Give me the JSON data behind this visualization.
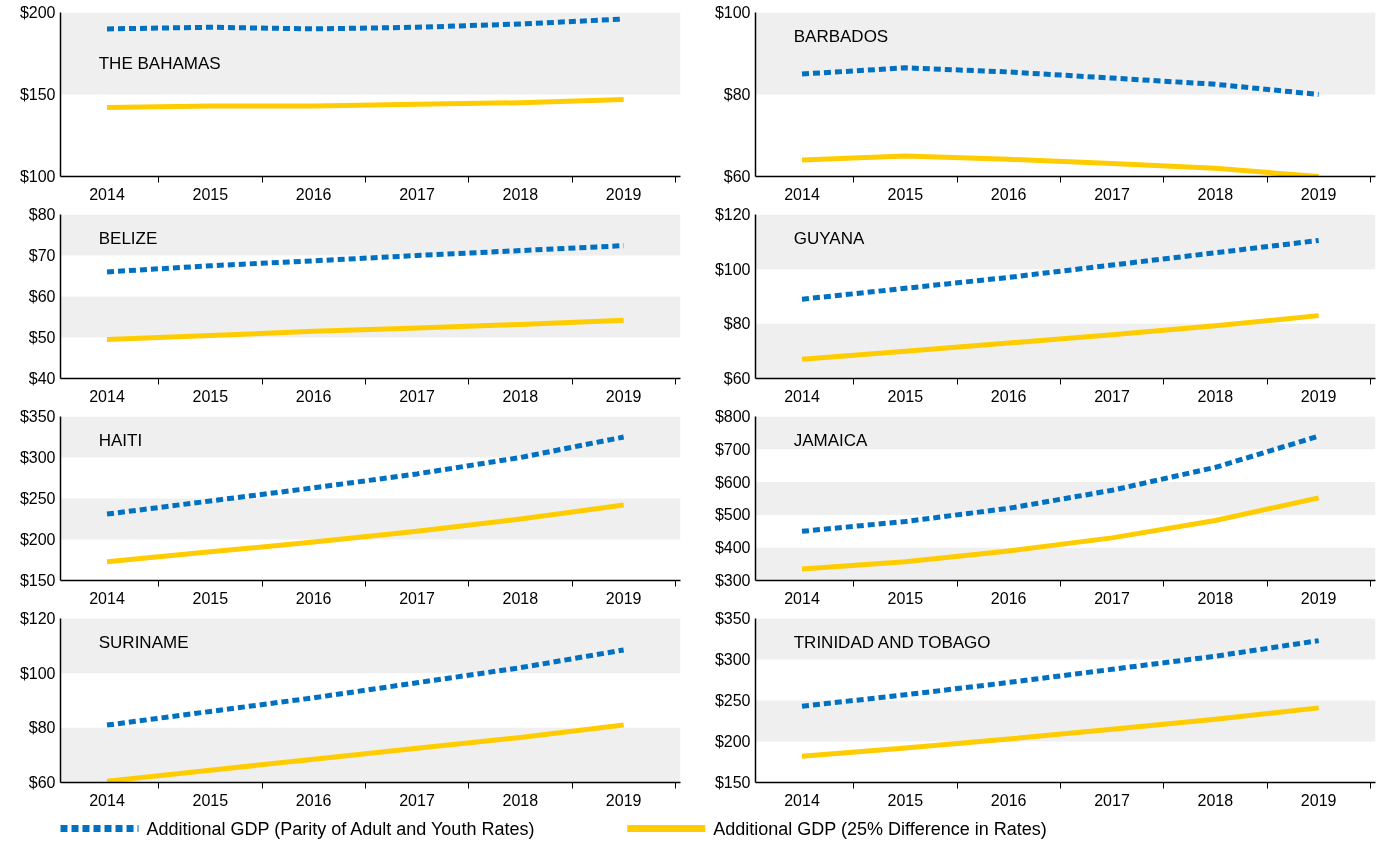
{
  "chart_data": [
    {
      "type": "line",
      "title": "THE BAHAMAS",
      "categories": [
        "2014",
        "2015",
        "2016",
        "2017",
        "2018",
        "2019"
      ],
      "ylim": [
        100,
        200
      ],
      "yticks": [
        {
          "value": 100,
          "label": "$100"
        },
        {
          "value": 150,
          "label": "$150"
        },
        {
          "value": 200,
          "label": "$200"
        }
      ],
      "bands": [
        {
          "axis": "y",
          "from": 150,
          "to": 200,
          "color": "#efefef"
        }
      ],
      "series": [
        {
          "color": "#0070c0",
          "line_style": "dashed",
          "values": [
            190,
            191,
            190,
            191,
            193,
            196
          ]
        },
        {
          "color": "#ffcc00",
          "line_style": "solid",
          "values": [
            142,
            143,
            143,
            144,
            145,
            147
          ]
        }
      ]
    },
    {
      "type": "line",
      "title": "BARBADOS",
      "categories": [
        "2014",
        "2015",
        "2016",
        "2017",
        "2018",
        "2019"
      ],
      "ylim": [
        60,
        100
      ],
      "yticks": [
        {
          "value": 60,
          "label": "$60"
        },
        {
          "value": 80,
          "label": "$80"
        },
        {
          "value": 100,
          "label": "$100"
        }
      ],
      "bands": [
        {
          "axis": "y",
          "from": 80,
          "to": 100,
          "color": "#efefef"
        }
      ],
      "series": [
        {
          "color": "#0070c0",
          "line_style": "dashed",
          "values": [
            85,
            86.5,
            85.5,
            84,
            82.5,
            80
          ]
        },
        {
          "color": "#ffcc00",
          "line_style": "solid",
          "values": [
            64,
            65,
            64.2,
            63.2,
            62,
            60
          ]
        }
      ]
    },
    {
      "type": "line",
      "title": "BELIZE",
      "categories": [
        "2014",
        "2015",
        "2016",
        "2017",
        "2018",
        "2019"
      ],
      "ylim": [
        40,
        80
      ],
      "yticks": [
        {
          "value": 40,
          "label": "$40"
        },
        {
          "value": 50,
          "label": "$50"
        },
        {
          "value": 60,
          "label": "$60"
        },
        {
          "value": 70,
          "label": "$70"
        },
        {
          "value": 80,
          "label": "$80"
        }
      ],
      "bands": [
        {
          "axis": "y",
          "from": 70,
          "to": 80,
          "color": "#efefef"
        },
        {
          "axis": "y",
          "from": 50,
          "to": 60,
          "color": "#efefef"
        }
      ],
      "series": [
        {
          "color": "#0070c0",
          "line_style": "dashed",
          "values": [
            66,
            67.5,
            68.7,
            70,
            71.2,
            72.4
          ]
        },
        {
          "color": "#ffcc00",
          "line_style": "solid",
          "values": [
            49.5,
            50.5,
            51.5,
            52.3,
            53.2,
            54.2
          ]
        }
      ]
    },
    {
      "type": "line",
      "title": "GUYANA",
      "categories": [
        "2014",
        "2015",
        "2016",
        "2017",
        "2018",
        "2019"
      ],
      "ylim": [
        60,
        120
      ],
      "yticks": [
        {
          "value": 60,
          "label": "$60"
        },
        {
          "value": 80,
          "label": "$80"
        },
        {
          "value": 100,
          "label": "$100"
        },
        {
          "value": 120,
          "label": "$120"
        }
      ],
      "bands": [
        {
          "axis": "y",
          "from": 100,
          "to": 120,
          "color": "#efefef"
        },
        {
          "axis": "y",
          "from": 60,
          "to": 80,
          "color": "#efefef"
        }
      ],
      "series": [
        {
          "color": "#0070c0",
          "line_style": "dashed",
          "values": [
            89,
            93,
            97,
            101.5,
            106,
            110.5
          ]
        },
        {
          "color": "#ffcc00",
          "line_style": "solid",
          "values": [
            67,
            70,
            73,
            76,
            79.3,
            83
          ]
        }
      ]
    },
    {
      "type": "line",
      "title": "HAITI",
      "categories": [
        "2014",
        "2015",
        "2016",
        "2017",
        "2018",
        "2019"
      ],
      "ylim": [
        150,
        350
      ],
      "yticks": [
        {
          "value": 150,
          "label": "$150"
        },
        {
          "value": 200,
          "label": "$200"
        },
        {
          "value": 250,
          "label": "$250"
        },
        {
          "value": 300,
          "label": "$300"
        },
        {
          "value": 350,
          "label": "$350"
        }
      ],
      "bands": [
        {
          "axis": "y",
          "from": 300,
          "to": 350,
          "color": "#efefef"
        },
        {
          "axis": "y",
          "from": 200,
          "to": 250,
          "color": "#efefef"
        }
      ],
      "series": [
        {
          "color": "#0070c0",
          "line_style": "dashed",
          "values": [
            231,
            247,
            263,
            280,
            300,
            325
          ]
        },
        {
          "color": "#ffcc00",
          "line_style": "solid",
          "values": [
            173,
            185,
            197,
            210,
            225,
            242
          ]
        }
      ]
    },
    {
      "type": "line",
      "title": "JAMAICA",
      "categories": [
        "2014",
        "2015",
        "2016",
        "2017",
        "2018",
        "2019"
      ],
      "ylim": [
        300,
        800
      ],
      "yticks": [
        {
          "value": 300,
          "label": "$300"
        },
        {
          "value": 400,
          "label": "$400"
        },
        {
          "value": 500,
          "label": "$500"
        },
        {
          "value": 600,
          "label": "$600"
        },
        {
          "value": 700,
          "label": "$700"
        },
        {
          "value": 800,
          "label": "$800"
        }
      ],
      "bands": [
        {
          "axis": "y",
          "from": 700,
          "to": 800,
          "color": "#efefef"
        },
        {
          "axis": "y",
          "from": 500,
          "to": 600,
          "color": "#efefef"
        },
        {
          "axis": "y",
          "from": 300,
          "to": 400,
          "color": "#efefef"
        }
      ],
      "series": [
        {
          "color": "#0070c0",
          "line_style": "dashed",
          "values": [
            450,
            480,
            520,
            575,
            645,
            740
          ]
        },
        {
          "color": "#ffcc00",
          "line_style": "solid",
          "values": [
            335,
            357,
            390,
            430,
            483,
            552
          ]
        }
      ]
    },
    {
      "type": "line",
      "title": "SURINAME",
      "categories": [
        "2014",
        "2015",
        "2016",
        "2017",
        "2018",
        "2019"
      ],
      "ylim": [
        60,
        120
      ],
      "yticks": [
        {
          "value": 60,
          "label": "$60"
        },
        {
          "value": 80,
          "label": "$80"
        },
        {
          "value": 100,
          "label": "$100"
        },
        {
          "value": 120,
          "label": "$120"
        }
      ],
      "bands": [
        {
          "axis": "y",
          "from": 100,
          "to": 120,
          "color": "#efefef"
        },
        {
          "axis": "y",
          "from": 60,
          "to": 80,
          "color": "#efefef"
        }
      ],
      "series": [
        {
          "color": "#0070c0",
          "line_style": "dashed",
          "values": [
            81,
            86,
            91,
            96.5,
            102,
            108.5
          ]
        },
        {
          "color": "#ffcc00",
          "line_style": "solid",
          "values": [
            60.5,
            64.5,
            68.5,
            72.5,
            76.5,
            81
          ]
        }
      ]
    },
    {
      "type": "line",
      "title": "TRINIDAD AND TOBAGO",
      "categories": [
        "2014",
        "2015",
        "2016",
        "2017",
        "2018",
        "2019"
      ],
      "ylim": [
        150,
        350
      ],
      "yticks": [
        {
          "value": 150,
          "label": "$150"
        },
        {
          "value": 200,
          "label": "$200"
        },
        {
          "value": 250,
          "label": "$250"
        },
        {
          "value": 300,
          "label": "$300"
        },
        {
          "value": 350,
          "label": "$350"
        }
      ],
      "bands": [
        {
          "axis": "y",
          "from": 300,
          "to": 350,
          "color": "#efefef"
        },
        {
          "axis": "y",
          "from": 200,
          "to": 250,
          "color": "#efefef"
        }
      ],
      "legend": "bottom",
      "series": [
        {
          "name": "Additional GDP (Parity of Adult and Youth Rates)",
          "color": "#0070c0",
          "line_style": "dashed",
          "values": [
            243,
            257,
            272,
            288,
            304,
            323
          ]
        },
        {
          "name": "Additional GDP (25% Difference in Rates)",
          "color": "#ffcc00",
          "line_style": "solid",
          "values": [
            182,
            192,
            203,
            215,
            227,
            241
          ]
        }
      ]
    }
  ]
}
